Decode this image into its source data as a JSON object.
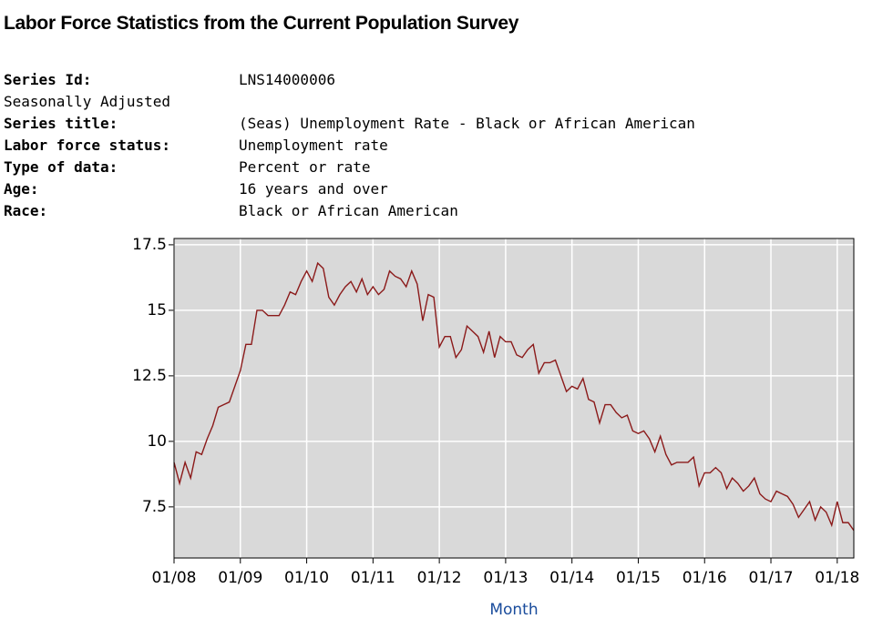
{
  "header": {
    "title": "Labor Force Statistics from the Current Population Survey",
    "fields": [
      {
        "label": "Series Id:",
        "value": "LNS14000006"
      },
      {
        "label": "Seasonally Adjusted"
      },
      {
        "label": "Series title:",
        "value": "(Seas) Unemployment Rate - Black or African American"
      },
      {
        "label": "Labor force status:",
        "value": "Unemployment rate"
      },
      {
        "label": "Type of data:",
        "value": "Percent or rate"
      },
      {
        "label": "Age:",
        "value": "16 years and over"
      },
      {
        "label": "Race:",
        "value": "Black or African American"
      }
    ]
  },
  "chart_data": {
    "type": "line",
    "x_label": "Month",
    "categories": [
      "01/08",
      null,
      null,
      null,
      null,
      null,
      null,
      null,
      null,
      null,
      null,
      null,
      "01/09",
      null,
      null,
      null,
      null,
      null,
      null,
      null,
      null,
      null,
      null,
      null,
      "01/10",
      null,
      null,
      null,
      null,
      null,
      null,
      null,
      null,
      null,
      null,
      null,
      "01/11",
      null,
      null,
      null,
      null,
      null,
      null,
      null,
      null,
      null,
      null,
      null,
      "01/12",
      null,
      null,
      null,
      null,
      null,
      null,
      null,
      null,
      null,
      null,
      null,
      "01/13",
      null,
      null,
      null,
      null,
      null,
      null,
      null,
      null,
      null,
      null,
      null,
      "01/14",
      null,
      null,
      null,
      null,
      null,
      null,
      null,
      null,
      null,
      null,
      null,
      "01/15",
      null,
      null,
      null,
      null,
      null,
      null,
      null,
      null,
      null,
      null,
      null,
      "01/16",
      null,
      null,
      null,
      null,
      null,
      null,
      null,
      null,
      null,
      null,
      null,
      "01/17",
      null,
      null,
      null,
      null,
      null,
      null,
      null,
      null,
      null,
      null,
      null,
      "01/18",
      null,
      null,
      null
    ],
    "series": [
      {
        "color": "#8b1a1a",
        "values": [
          9.2,
          8.4,
          9.2,
          8.6,
          9.6,
          9.5,
          10.1,
          10.6,
          11.3,
          11.4,
          11.5,
          12.1,
          12.7,
          13.7,
          13.7,
          15.0,
          15.0,
          14.8,
          14.8,
          14.8,
          15.2,
          15.7,
          15.6,
          16.1,
          16.5,
          16.1,
          16.8,
          16.6,
          15.5,
          15.2,
          15.6,
          15.9,
          16.1,
          15.7,
          16.2,
          15.6,
          15.9,
          15.6,
          15.8,
          16.5,
          16.3,
          16.2,
          15.9,
          16.5,
          16.0,
          14.6,
          15.6,
          15.5,
          13.6,
          14.0,
          14.0,
          13.2,
          13.5,
          14.4,
          14.2,
          14.0,
          13.4,
          14.2,
          13.2,
          14.0,
          13.8,
          13.8,
          13.3,
          13.2,
          13.5,
          13.7,
          12.6,
          13.0,
          13.0,
          13.1,
          12.5,
          11.9,
          12.1,
          12.0,
          12.4,
          11.6,
          11.5,
          10.7,
          11.4,
          11.4,
          11.1,
          10.9,
          11.0,
          10.4,
          10.3,
          10.4,
          10.1,
          9.6,
          10.2,
          9.5,
          9.1,
          9.2,
          9.2,
          9.2,
          9.4,
          8.3,
          8.8,
          8.8,
          9.0,
          8.8,
          8.2,
          8.6,
          8.4,
          8.1,
          8.3,
          8.6,
          8.0,
          7.8,
          7.7,
          8.1,
          8.0,
          7.9,
          7.6,
          7.1,
          7.4,
          7.7,
          7.0,
          7.5,
          7.3,
          6.8,
          7.7,
          6.9,
          6.9,
          6.6
        ]
      }
    ],
    "ylim": [
      5.55,
      17.74
    ],
    "yticks": [
      7.5,
      10,
      12.5,
      15,
      17.5
    ],
    "grid": true,
    "plot_background": "#d9d9d9",
    "grid_color": "#ffffff",
    "x_label_color": "#1a4c9c"
  }
}
